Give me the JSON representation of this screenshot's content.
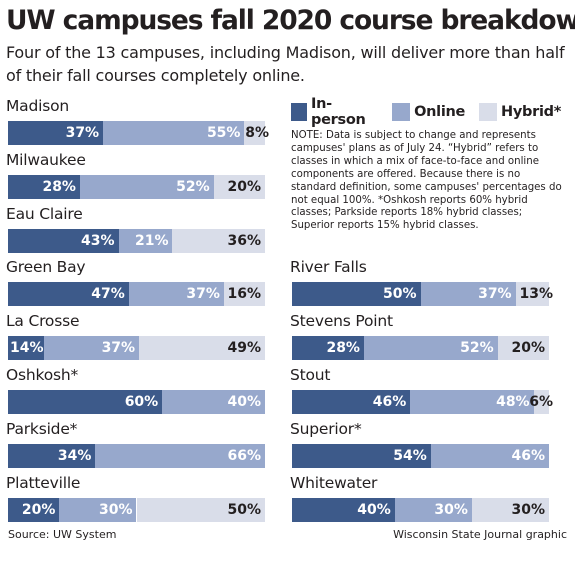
{
  "title": "UW campuses fall 2020 course breakdown",
  "subtitle": "Four of the 13 campuses, including Madison, will deliver more than half of their fall courses completely online.",
  "legend": {
    "in_person": "In-person",
    "online": "Online",
    "hybrid": "Hybrid*"
  },
  "colors": {
    "in_person": "#3d5a8a",
    "online": "#97a8cc",
    "hybrid": "#d9dde9"
  },
  "note": "NOTE: Data is subject to change and represents campuses' plans as of July 24. “Hybrid” refers to classes in which a mix of face-to-face and online components are offered. Because there is no standard definition, some campuses' percentages do not equal 100%. *Oshkosh reports 60% hybrid classes; Parkside reports 18% hybrid classes; Superior reports 15% hybrid classes.",
  "source": "Source: UW System",
  "credit": "Wisconsin State Journal graphic",
  "chart_data": {
    "type": "bar",
    "orientation": "horizontal",
    "stacked": true,
    "xlim": [
      0,
      100
    ],
    "unit": "%",
    "series_names": [
      "In-person",
      "Online",
      "Hybrid*"
    ],
    "campuses": [
      {
        "name": "Madison",
        "in_person": 37,
        "online": 55,
        "hybrid": 8,
        "labels": [
          "37%",
          "55%",
          "8%"
        ]
      },
      {
        "name": "Milwaukee",
        "in_person": 28,
        "online": 52,
        "hybrid": 20,
        "labels": [
          "28%",
          "52%",
          "20%"
        ]
      },
      {
        "name": "Eau Claire",
        "in_person": 43,
        "online": 21,
        "hybrid": 36,
        "labels": [
          "43%",
          "21%",
          "36%"
        ]
      },
      {
        "name": "Green Bay",
        "in_person": 47,
        "online": 37,
        "hybrid": 16,
        "labels": [
          "47%",
          "37%",
          "16%"
        ]
      },
      {
        "name": "La Crosse",
        "in_person": 14,
        "online": 37,
        "hybrid": 49,
        "labels": [
          "14%",
          "37%",
          "49%"
        ]
      },
      {
        "name": "Oshkosh*",
        "in_person": 60,
        "online": 40,
        "hybrid": null,
        "labels": [
          "60%",
          "40%",
          ""
        ]
      },
      {
        "name": "Parkside*",
        "in_person": 34,
        "online": 66,
        "hybrid": null,
        "labels": [
          "34%",
          "66%",
          ""
        ]
      },
      {
        "name": "Platteville",
        "in_person": 20,
        "online": 30,
        "hybrid": 50,
        "labels": [
          "20%",
          "30%",
          "50%"
        ]
      },
      {
        "name": "River Falls",
        "in_person": 50,
        "online": 37,
        "hybrid": 13,
        "labels": [
          "50%",
          "37%",
          "13%"
        ]
      },
      {
        "name": "Stevens Point",
        "in_person": 28,
        "online": 52,
        "hybrid": 20,
        "labels": [
          "28%",
          "52%",
          "20%"
        ]
      },
      {
        "name": "Stout",
        "in_person": 46,
        "online": 48,
        "hybrid": 6,
        "labels": [
          "46%",
          "48%",
          "6%"
        ]
      },
      {
        "name": "Superior*",
        "in_person": 54,
        "online": 46,
        "hybrid": null,
        "labels": [
          "54%",
          "46%",
          ""
        ]
      },
      {
        "name": "Whitewater",
        "in_person": 40,
        "online": 30,
        "hybrid": 30,
        "labels": [
          "40%",
          "30%",
          "30%"
        ]
      }
    ]
  }
}
